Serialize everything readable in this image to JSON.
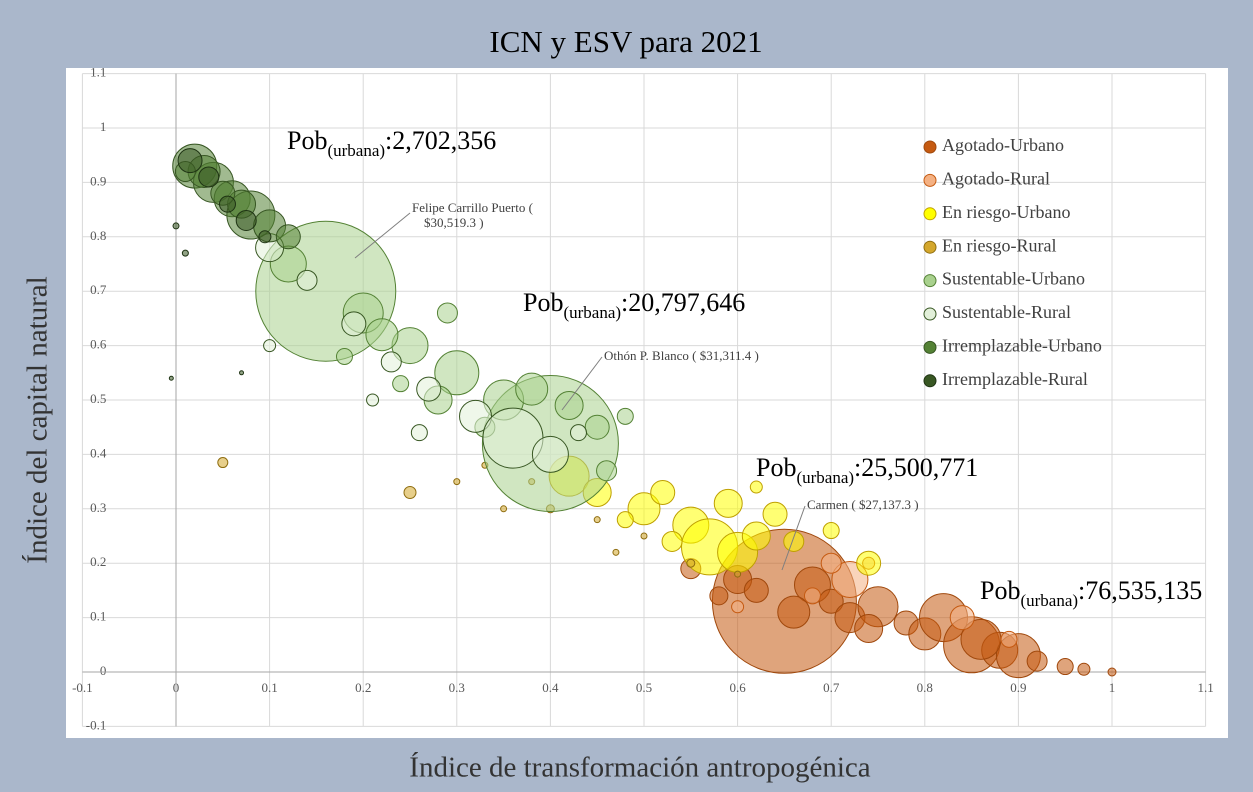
{
  "chart_data": {
    "type": "bubble",
    "title": "ICN y ESV para 2021",
    "xlabel": "Índice de transformación antropogénica",
    "ylabel": "Índice del capital natural",
    "xlim": [
      -0.1,
      1.1
    ],
    "ylim": [
      -0.1,
      1.1
    ],
    "xticks": [
      -0.1,
      0,
      0.1,
      0.2,
      0.3,
      0.4,
      0.5,
      0.6,
      0.7,
      0.8,
      0.9,
      1,
      1.1
    ],
    "yticks": [
      -0.1,
      0,
      0.1,
      0.2,
      0.3,
      0.4,
      0.5,
      0.6,
      0.7,
      0.8,
      0.9,
      1,
      1.1
    ],
    "grid": true,
    "legend": "upper right",
    "series": [
      {
        "name": "Agotado-Urbano",
        "color": "#c55a11",
        "edge": "#a0480c",
        "x": [
          0.65,
          0.55,
          0.6,
          0.68,
          0.7,
          0.72,
          0.75,
          0.78,
          0.8,
          0.82,
          0.85,
          0.88,
          0.9,
          0.92,
          0.95,
          0.97,
          1.0,
          0.62,
          0.58,
          0.74,
          0.86,
          0.66
        ],
        "values": [
          0.13,
          0.19,
          0.17,
          0.16,
          0.13,
          0.1,
          0.12,
          0.09,
          0.07,
          0.1,
          0.05,
          0.04,
          0.03,
          0.02,
          0.01,
          0.005,
          0,
          0.15,
          0.14,
          0.08,
          0.06,
          0.11
        ],
        "sizes": [
          72,
          10,
          14,
          18,
          12,
          15,
          20,
          12,
          16,
          24,
          28,
          18,
          22,
          10,
          8,
          6,
          4,
          12,
          9,
          14,
          20,
          16
        ]
      },
      {
        "name": "Agotado-Rural",
        "color": "#f4b183",
        "edge": "#c55a11",
        "x": [
          0.72,
          0.7,
          0.68,
          0.84,
          0.6,
          0.89,
          0.74
        ],
        "values": [
          0.17,
          0.2,
          0.14,
          0.1,
          0.12,
          0.06,
          0.2
        ],
        "sizes": [
          18,
          10,
          8,
          12,
          6,
          8,
          6
        ]
      },
      {
        "name": "En riesgo-Urbano",
        "color": "#ffff00",
        "edge": "#bfa000",
        "x": [
          0.42,
          0.45,
          0.5,
          0.52,
          0.55,
          0.57,
          0.6,
          0.62,
          0.64,
          0.66,
          0.7,
          0.74,
          0.53,
          0.48,
          0.59,
          0.62
        ],
        "values": [
          0.36,
          0.33,
          0.3,
          0.33,
          0.27,
          0.23,
          0.22,
          0.25,
          0.29,
          0.24,
          0.26,
          0.2,
          0.24,
          0.28,
          0.31,
          0.34
        ],
        "sizes": [
          20,
          14,
          16,
          12,
          18,
          28,
          20,
          14,
          12,
          10,
          8,
          12,
          10,
          8,
          14,
          6
        ]
      },
      {
        "name": "En riesgo-Rural",
        "color": "#d4a72c",
        "edge": "#8f6d0f",
        "x": [
          0.05,
          0.3,
          0.35,
          0.4,
          0.45,
          0.5,
          0.25,
          0.38,
          0.55,
          0.6,
          0.47,
          0.33
        ],
        "values": [
          0.385,
          0.35,
          0.3,
          0.3,
          0.28,
          0.25,
          0.33,
          0.35,
          0.2,
          0.18,
          0.22,
          0.38
        ],
        "sizes": [
          5,
          3,
          3,
          4,
          3,
          3,
          6,
          3,
          4,
          3,
          3,
          3
        ]
      },
      {
        "name": "Sustentable-Urbano",
        "color": "#a9d18e",
        "edge": "#548235",
        "x": [
          0.16,
          0.4,
          0.12,
          0.2,
          0.25,
          0.3,
          0.35,
          0.38,
          0.28,
          0.22,
          0.29,
          0.45,
          0.18,
          0.33,
          0.42,
          0.48,
          0.24,
          0.46
        ],
        "values": [
          0.7,
          0.42,
          0.75,
          0.66,
          0.6,
          0.55,
          0.5,
          0.52,
          0.5,
          0.62,
          0.66,
          0.45,
          0.58,
          0.45,
          0.49,
          0.47,
          0.53,
          0.37
        ],
        "sizes": [
          70,
          68,
          18,
          20,
          18,
          22,
          20,
          16,
          14,
          16,
          10,
          12,
          8,
          10,
          14,
          8,
          8,
          10
        ]
      },
      {
        "name": "Sustentable-Rural",
        "color": "#e2f0d9",
        "edge": "#385723",
        "x": [
          0.1,
          0.14,
          0.19,
          0.23,
          0.27,
          0.32,
          0.36,
          0.4,
          0.26,
          0.1,
          0.43,
          0.21
        ],
        "values": [
          0.78,
          0.72,
          0.64,
          0.57,
          0.52,
          0.47,
          0.43,
          0.4,
          0.44,
          0.6,
          0.44,
          0.5
        ],
        "sizes": [
          14,
          10,
          12,
          10,
          12,
          16,
          30,
          18,
          8,
          6,
          8,
          6
        ]
      },
      {
        "name": "Irremplazable-Urbano",
        "color": "#548235",
        "edge": "#375623",
        "x": [
          0.02,
          0.04,
          0.06,
          0.08,
          0.1,
          0.12,
          0.07,
          0.03,
          0.05,
          0.01
        ],
        "values": [
          0.93,
          0.9,
          0.87,
          0.84,
          0.82,
          0.8,
          0.86,
          0.92,
          0.88,
          0.92
        ],
        "sizes": [
          22,
          20,
          18,
          24,
          16,
          12,
          14,
          16,
          12,
          10
        ]
      },
      {
        "name": "Irremplazable-Rural",
        "color": "#385723",
        "edge": "#1e3313",
        "x": [
          0.015,
          0.035,
          0.055,
          0.075,
          0.095,
          0.0,
          0.01,
          -0.005,
          0.07
        ],
        "values": [
          0.94,
          0.91,
          0.86,
          0.83,
          0.8,
          0.82,
          0.77,
          0.54,
          0.55
        ],
        "sizes": [
          12,
          10,
          8,
          10,
          6,
          3,
          3,
          2,
          2
        ]
      }
    ],
    "annotations": [
      {
        "prefix": "Pob",
        "sub": "(urbana)",
        "text": ":2,702,356"
      },
      {
        "prefix": "Pob",
        "sub": "(urbana)",
        "text": ":20,797,646"
      },
      {
        "prefix": "Pob",
        "sub": "(urbana)",
        "text": ":25,500,771"
      },
      {
        "prefix": "Pob",
        "sub": "(urbana)",
        "text": ":76,535,135"
      }
    ],
    "callouts": [
      {
        "lines": [
          "Felipe Carrillo Puerto (",
          "$30,519.3 )"
        ]
      },
      {
        "lines": [
          "Othón P. Blanco ( $31,311.4 )"
        ]
      },
      {
        "lines": [
          "Carmen ( $27,137.3 )"
        ]
      }
    ]
  }
}
